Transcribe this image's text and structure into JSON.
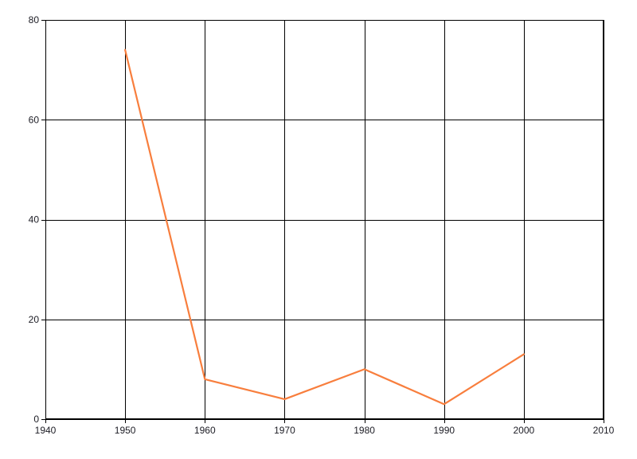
{
  "chart_data": {
    "type": "line",
    "x": [
      1950,
      1960,
      1970,
      1980,
      1990,
      2000
    ],
    "values": [
      74,
      8,
      4,
      10,
      3,
      13
    ],
    "title": "",
    "xlabel": "",
    "ylabel": "",
    "xlim": [
      1940,
      2010
    ],
    "ylim": [
      0,
      80
    ],
    "xticks": [
      1940,
      1950,
      1960,
      1970,
      1980,
      1990,
      2000,
      2010
    ],
    "yticks": [
      0,
      20,
      40,
      60,
      80
    ],
    "grid": true,
    "legend_position": "none",
    "line_color": "#F87E3D",
    "grid_color": "#000000",
    "label_color": "#1c1c24",
    "background": "#FFFFFF"
  }
}
